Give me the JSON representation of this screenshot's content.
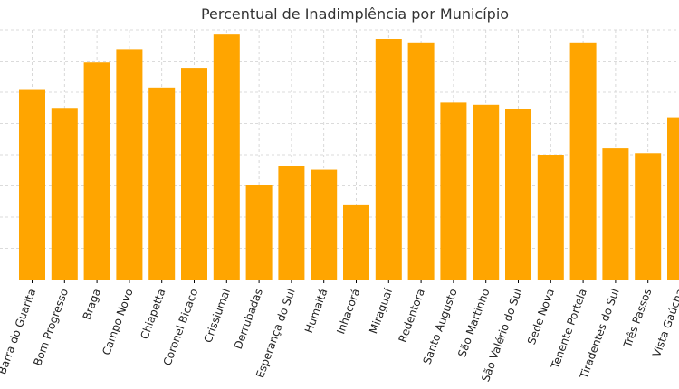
{
  "chart_data": {
    "type": "bar",
    "title": "Percentual de Inadimplência por Município",
    "xlabel": "",
    "ylabel": "",
    "ylim": [
      0,
      8
    ],
    "grid": true,
    "bar_color": "#ffa500",
    "categories": [
      "Barra do Guarita",
      "Bom Progresso",
      "Braga",
      "Campo Novo",
      "Chiapetta",
      "Coronel Bicaco",
      "Crissiumal",
      "Derrubadas",
      "Esperança do Sul",
      "Humaitá",
      "Inhacorá",
      "Miraguaí",
      "Redentora",
      "Santo Augusto",
      "São Martinho",
      "São Valério do Sul",
      "Sede Nova",
      "Tenente Portela",
      "Tiradentes do Sul",
      "Três Passos",
      "Vista Gaúcha"
    ],
    "values": [
      6.1,
      5.5,
      6.95,
      7.38,
      6.15,
      6.78,
      7.85,
      3.03,
      3.65,
      3.52,
      2.38,
      7.71,
      7.6,
      5.67,
      5.6,
      5.45,
      4.0,
      7.6,
      4.2,
      4.05,
      5.2
    ]
  }
}
